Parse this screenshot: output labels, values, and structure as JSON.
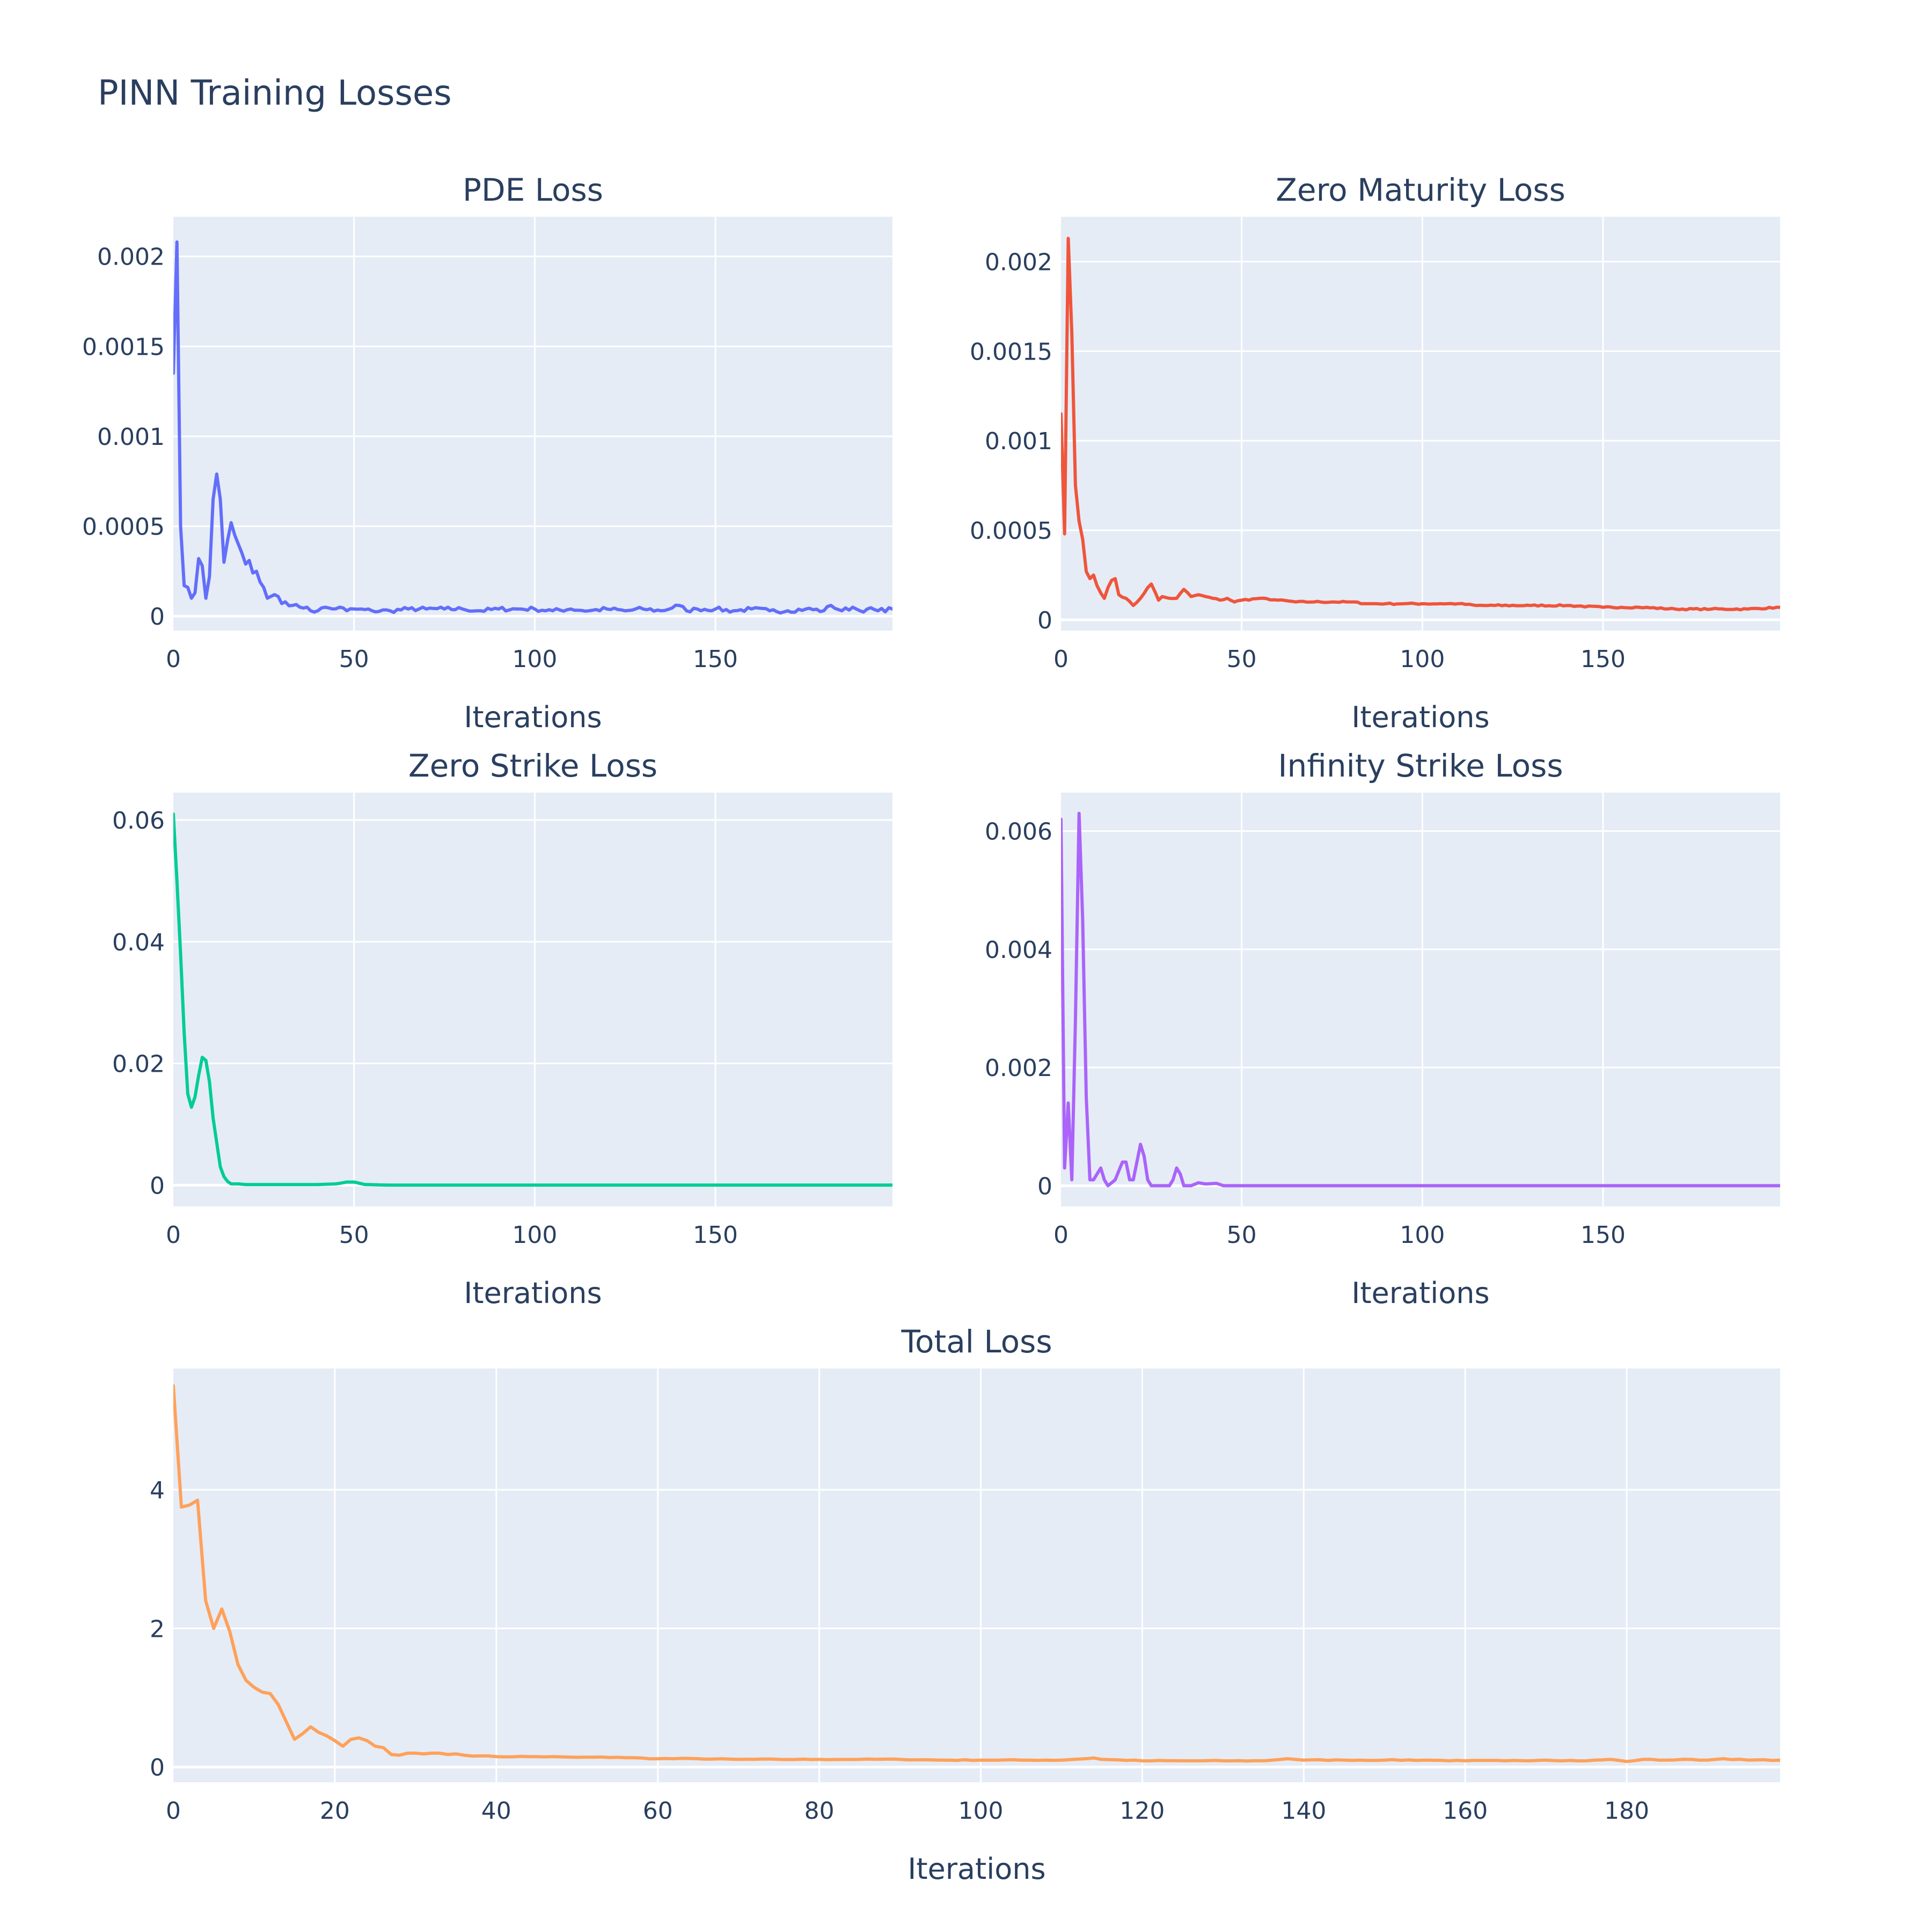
{
  "figure": {
    "title": "PINN Training Losses"
  },
  "chart_data": [
    {
      "type": "line",
      "title": "PDE Loss",
      "xlabel": "Iterations",
      "ylabel": "",
      "xlim": [
        0,
        199
      ],
      "ylim": [
        -8e-05,
        0.00222
      ],
      "xticks": [
        0,
        50,
        100,
        150
      ],
      "yticks": [
        0,
        0.0005,
        0.001,
        0.0015,
        0.002
      ],
      "ytick_labels": [
        "0",
        "0.0005",
        "0.001",
        "0.0015",
        "0.002"
      ],
      "grid": true,
      "color": "#636efa",
      "anchors": [
        [
          0,
          0.00135
        ],
        [
          1,
          0.00208
        ],
        [
          2,
          0.0005
        ],
        [
          3,
          0.00017
        ],
        [
          4,
          0.00016
        ],
        [
          5,
          0.0001
        ],
        [
          6,
          0.00013
        ],
        [
          7,
          0.00032
        ],
        [
          8,
          0.00028
        ],
        [
          9,
          0.0001
        ],
        [
          10,
          0.00022
        ],
        [
          11,
          0.00065
        ],
        [
          12,
          0.00079
        ],
        [
          13,
          0.00065
        ],
        [
          14,
          0.0003
        ],
        [
          15,
          0.00042
        ],
        [
          16,
          0.00052
        ],
        [
          17,
          0.00045
        ],
        [
          18,
          0.0004
        ],
        [
          19,
          0.00035
        ],
        [
          20,
          0.00029
        ],
        [
          21,
          0.00031
        ],
        [
          22,
          0.00024
        ],
        [
          23,
          0.00025
        ],
        [
          24,
          0.00019
        ],
        [
          25,
          0.00016
        ],
        [
          26,
          0.0001
        ],
        [
          27,
          0.00011
        ],
        [
          28,
          0.00012
        ],
        [
          29,
          0.00011
        ],
        [
          30,
          7e-05
        ],
        [
          31,
          8e-05
        ],
        [
          33,
          6e-05
        ],
        [
          35,
          5e-05
        ],
        [
          37,
          5e-05
        ],
        [
          38,
          3e-05
        ],
        [
          40,
          3e-05
        ],
        [
          42,
          5e-05
        ],
        [
          44,
          4e-05
        ],
        [
          46,
          5e-05
        ],
        [
          48,
          3e-05
        ],
        [
          50,
          4e-05
        ],
        [
          55,
          3e-05
        ],
        [
          60,
          3e-05
        ],
        [
          65,
          4e-05
        ],
        [
          70,
          4e-05
        ],
        [
          75,
          4e-05
        ],
        [
          80,
          4e-05
        ],
        [
          85,
          3e-05
        ],
        [
          90,
          4e-05
        ],
        [
          95,
          4e-05
        ],
        [
          100,
          4e-05
        ],
        [
          105,
          3e-05
        ],
        [
          110,
          4e-05
        ],
        [
          115,
          3e-05
        ],
        [
          120,
          4e-05
        ],
        [
          125,
          3e-05
        ],
        [
          130,
          4e-05
        ],
        [
          135,
          3e-05
        ],
        [
          140,
          6e-05
        ],
        [
          142,
          3e-05
        ],
        [
          145,
          4e-05
        ],
        [
          150,
          4e-05
        ],
        [
          155,
          3e-05
        ],
        [
          160,
          4e-05
        ],
        [
          165,
          3e-05
        ],
        [
          170,
          3e-05
        ],
        [
          175,
          4e-05
        ],
        [
          180,
          3e-05
        ],
        [
          182,
          6e-05
        ],
        [
          185,
          3e-05
        ],
        [
          188,
          5e-05
        ],
        [
          190,
          3e-05
        ],
        [
          192,
          4e-05
        ],
        [
          195,
          3e-05
        ],
        [
          199,
          4e-05
        ]
      ],
      "noise": 1.2e-05,
      "decimals": 6
    },
    {
      "type": "line",
      "title": "Zero Maturity Loss",
      "xlabel": "Iterations",
      "ylabel": "",
      "xlim": [
        0,
        199
      ],
      "ylim": [
        -6e-05,
        0.00225
      ],
      "xticks": [
        0,
        50,
        100,
        150
      ],
      "yticks": [
        0,
        0.0005,
        0.001,
        0.0015,
        0.002
      ],
      "ytick_labels": [
        "0",
        "0.0005",
        "0.001",
        "0.0015",
        "0.002"
      ],
      "grid": true,
      "color": "#ef553b",
      "anchors": [
        [
          0,
          0.00115
        ],
        [
          1,
          0.00048
        ],
        [
          2,
          0.00213
        ],
        [
          3,
          0.0016
        ],
        [
          4,
          0.00075
        ],
        [
          5,
          0.00055
        ],
        [
          6,
          0.00045
        ],
        [
          7,
          0.00027
        ],
        [
          8,
          0.00023
        ],
        [
          9,
          0.00025
        ],
        [
          10,
          0.00019
        ],
        [
          11,
          0.00015
        ],
        [
          12,
          0.00012
        ],
        [
          13,
          0.00018
        ],
        [
          14,
          0.00022
        ],
        [
          15,
          0.00023
        ],
        [
          16,
          0.00014
        ],
        [
          18,
          0.00012
        ],
        [
          20,
          8e-05
        ],
        [
          22,
          0.00012
        ],
        [
          24,
          0.00018
        ],
        [
          25,
          0.0002
        ],
        [
          27,
          0.00011
        ],
        [
          28,
          0.00013
        ],
        [
          30,
          0.00012
        ],
        [
          32,
          0.00012
        ],
        [
          34,
          0.00017
        ],
        [
          36,
          0.00013
        ],
        [
          38,
          0.00014
        ],
        [
          40,
          0.00013
        ],
        [
          42,
          0.00012
        ],
        [
          44,
          0.00011
        ],
        [
          46,
          0.00012
        ],
        [
          48,
          0.0001
        ],
        [
          50,
          0.00011
        ],
        [
          55,
          0.00012
        ],
        [
          60,
          0.00011
        ],
        [
          65,
          0.0001
        ],
        [
          70,
          0.0001
        ],
        [
          75,
          0.0001
        ],
        [
          80,
          0.0001
        ],
        [
          85,
          9e-05
        ],
        [
          90,
          9e-05
        ],
        [
          95,
          9e-05
        ],
        [
          100,
          9e-05
        ],
        [
          105,
          9e-05
        ],
        [
          110,
          9e-05
        ],
        [
          115,
          8e-05
        ],
        [
          120,
          8e-05
        ],
        [
          130,
          8e-05
        ],
        [
          140,
          8e-05
        ],
        [
          150,
          7e-05
        ],
        [
          155,
          7e-05
        ],
        [
          160,
          7e-05
        ],
        [
          170,
          6e-05
        ],
        [
          180,
          6e-05
        ],
        [
          190,
          6e-05
        ],
        [
          199,
          7e-05
        ]
      ],
      "noise": 4e-06,
      "decimals": 6
    },
    {
      "type": "line",
      "title": "Zero Strike Loss",
      "xlabel": "Iterations",
      "ylabel": "",
      "xlim": [
        0,
        199
      ],
      "ylim": [
        -0.0035,
        0.0645
      ],
      "xticks": [
        0,
        50,
        100,
        150
      ],
      "yticks": [
        0,
        0.02,
        0.04,
        0.06
      ],
      "ytick_labels": [
        "0",
        "0.02",
        "0.04",
        "0.06"
      ],
      "grid": true,
      "color": "#00cc96",
      "anchors": [
        [
          0,
          0.061
        ],
        [
          1,
          0.05
        ],
        [
          2,
          0.038
        ],
        [
          3,
          0.025
        ],
        [
          4,
          0.015
        ],
        [
          5,
          0.0128
        ],
        [
          6,
          0.0145
        ],
        [
          7,
          0.018
        ],
        [
          8,
          0.021
        ],
        [
          9,
          0.0205
        ],
        [
          10,
          0.017
        ],
        [
          11,
          0.011
        ],
        [
          12,
          0.007
        ],
        [
          13,
          0.003
        ],
        [
          14,
          0.0014
        ],
        [
          15,
          0.0006
        ],
        [
          16,
          0.0002
        ],
        [
          18,
          0.0002
        ],
        [
          20,
          0.0001
        ],
        [
          30,
          0.0001
        ],
        [
          40,
          0.0001
        ],
        [
          45,
          0.0002
        ],
        [
          48,
          0.0005
        ],
        [
          50,
          0.0005
        ],
        [
          53,
          0.0001
        ],
        [
          60,
          0
        ],
        [
          100,
          0
        ],
        [
          150,
          0
        ],
        [
          199,
          0
        ]
      ],
      "noise": 0,
      "decimals": 5
    },
    {
      "type": "line",
      "title": "Infinity Strike Loss",
      "xlabel": "Iterations",
      "ylabel": "",
      "xlim": [
        0,
        199
      ],
      "ylim": [
        -0.00035,
        0.00665
      ],
      "xticks": [
        0,
        50,
        100,
        150
      ],
      "yticks": [
        0,
        0.002,
        0.004,
        0.006
      ],
      "ytick_labels": [
        "0",
        "0.002",
        "0.004",
        "0.006"
      ],
      "grid": true,
      "color": "#ab63fa",
      "anchors": [
        [
          0,
          0.0062
        ],
        [
          1,
          0.0003
        ],
        [
          2,
          0.0014
        ],
        [
          3,
          0.0001
        ],
        [
          4,
          0.0028
        ],
        [
          5,
          0.0063
        ],
        [
          6,
          0.0045
        ],
        [
          7,
          0.0015
        ],
        [
          8,
          0.0001
        ],
        [
          9,
          0.0001
        ],
        [
          10,
          0.0002
        ],
        [
          11,
          0.0003
        ],
        [
          12,
          0.0001
        ],
        [
          13,
          0
        ],
        [
          15,
          0.0001
        ],
        [
          17,
          0.0004
        ],
        [
          18,
          0.0004
        ],
        [
          19,
          0.0001
        ],
        [
          20,
          0.0001
        ],
        [
          22,
          0.0007
        ],
        [
          23,
          0.0005
        ],
        [
          24,
          0.0001
        ],
        [
          25,
          0
        ],
        [
          27,
          0
        ],
        [
          30,
          0
        ],
        [
          31,
          0.0001
        ],
        [
          32,
          0.0003
        ],
        [
          33,
          0.0002
        ],
        [
          34,
          0
        ],
        [
          36,
          0
        ],
        [
          38,
          5e-05
        ],
        [
          40,
          3e-05
        ],
        [
          43,
          4e-05
        ],
        [
          45,
          0
        ],
        [
          60,
          0
        ],
        [
          100,
          0
        ],
        [
          150,
          0
        ],
        [
          199,
          0
        ]
      ],
      "noise": 0,
      "decimals": 6
    },
    {
      "type": "line",
      "title": "Total Loss",
      "xlabel": "Iterations",
      "ylabel": "",
      "xlim": [
        0,
        199
      ],
      "ylim": [
        -0.22,
        5.75
      ],
      "xticks": [
        0,
        20,
        40,
        60,
        80,
        100,
        120,
        140,
        160,
        180
      ],
      "yticks": [
        0,
        2,
        4
      ],
      "ytick_labels": [
        "0",
        "2",
        "4"
      ],
      "grid": true,
      "color": "#ffa15a",
      "anchors": [
        [
          0,
          5.5
        ],
        [
          1,
          3.75
        ],
        [
          2,
          3.78
        ],
        [
          3,
          3.85
        ],
        [
          4,
          2.4
        ],
        [
          5,
          2.0
        ],
        [
          6,
          2.28
        ],
        [
          7,
          1.95
        ],
        [
          8,
          1.48
        ],
        [
          9,
          1.25
        ],
        [
          10,
          1.15
        ],
        [
          11,
          1.08
        ],
        [
          12,
          1.06
        ],
        [
          13,
          0.9
        ],
        [
          14,
          0.65
        ],
        [
          15,
          0.4
        ],
        [
          16,
          0.48
        ],
        [
          17,
          0.58
        ],
        [
          18,
          0.5
        ],
        [
          19,
          0.45
        ],
        [
          20,
          0.38
        ],
        [
          21,
          0.3
        ],
        [
          22,
          0.4
        ],
        [
          23,
          0.42
        ],
        [
          24,
          0.38
        ],
        [
          25,
          0.3
        ],
        [
          26,
          0.28
        ],
        [
          27,
          0.18
        ],
        [
          28,
          0.17
        ],
        [
          29,
          0.2
        ],
        [
          30,
          0.2
        ],
        [
          31,
          0.19
        ],
        [
          32,
          0.2
        ],
        [
          33,
          0.2
        ],
        [
          34,
          0.18
        ],
        [
          35,
          0.19
        ],
        [
          36,
          0.17
        ],
        [
          38,
          0.16
        ],
        [
          40,
          0.15
        ],
        [
          45,
          0.15
        ],
        [
          50,
          0.14
        ],
        [
          55,
          0.14
        ],
        [
          60,
          0.12
        ],
        [
          65,
          0.12
        ],
        [
          70,
          0.11
        ],
        [
          75,
          0.11
        ],
        [
          80,
          0.11
        ],
        [
          85,
          0.11
        ],
        [
          90,
          0.11
        ],
        [
          95,
          0.1
        ],
        [
          100,
          0.1
        ],
        [
          105,
          0.1
        ],
        [
          110,
          0.1
        ],
        [
          114,
          0.13
        ],
        [
          115,
          0.11
        ],
        [
          120,
          0.09
        ],
        [
          125,
          0.09
        ],
        [
          130,
          0.09
        ],
        [
          135,
          0.09
        ],
        [
          138,
          0.12
        ],
        [
          140,
          0.1
        ],
        [
          145,
          0.1
        ],
        [
          150,
          0.1
        ],
        [
          155,
          0.1
        ],
        [
          160,
          0.09
        ],
        [
          165,
          0.09
        ],
        [
          170,
          0.1
        ],
        [
          175,
          0.09
        ],
        [
          178,
          0.11
        ],
        [
          180,
          0.08
        ],
        [
          182,
          0.11
        ],
        [
          185,
          0.1
        ],
        [
          188,
          0.11
        ],
        [
          190,
          0.1
        ],
        [
          192,
          0.12
        ],
        [
          195,
          0.1
        ],
        [
          199,
          0.1
        ]
      ],
      "noise": 0.006,
      "decimals": 3
    }
  ]
}
